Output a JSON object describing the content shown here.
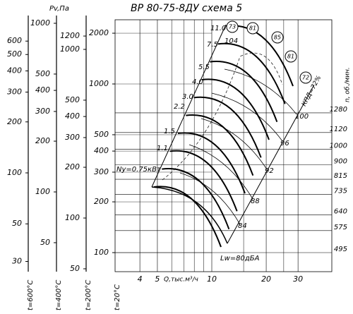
{
  "title": "ВР 80-75-8ДУ   схема 5",
  "pressure_unit": "Pv,Па",
  "temperature_scales": [
    {
      "label": "t=600°C",
      "ticks": [
        30,
        50,
        100,
        200,
        300,
        400,
        500,
        600
      ]
    },
    {
      "label": "t=400°C",
      "ticks": [
        50,
        100,
        200,
        300,
        400,
        500,
        1000
      ]
    },
    {
      "label": "t=200°C",
      "ticks": [
        50,
        100,
        200,
        300,
        400,
        500,
        1000,
        1200
      ]
    },
    {
      "label": "t=20°C",
      "ticks": [
        100,
        200,
        300,
        400,
        500,
        1000,
        2000
      ]
    }
  ],
  "flow_axis": {
    "label": "Q,тыс.м³/ч",
    "ticks": [
      4,
      5,
      10,
      20,
      30
    ]
  },
  "speed_axis": {
    "label": "n, об./мин.",
    "ticks": [
      495,
      575,
      640,
      735,
      815,
      900,
      1000,
      1120,
      1280
    ]
  },
  "power_labels": [
    "11.0",
    "7.5",
    "5.5",
    "4.0",
    "3.0",
    "2.2",
    "1.5",
    "1.1",
    "Ny=0.75кВт"
  ],
  "efficiency_labels": [
    "84",
    "88",
    "92",
    "96",
    "100"
  ],
  "efficiency_marker_label": "КПД=72%",
  "noise_circles": [
    "73",
    "81",
    "85",
    "81",
    "72"
  ],
  "noise_labels": [
    "104",
    "Lw=80дБА"
  ]
}
